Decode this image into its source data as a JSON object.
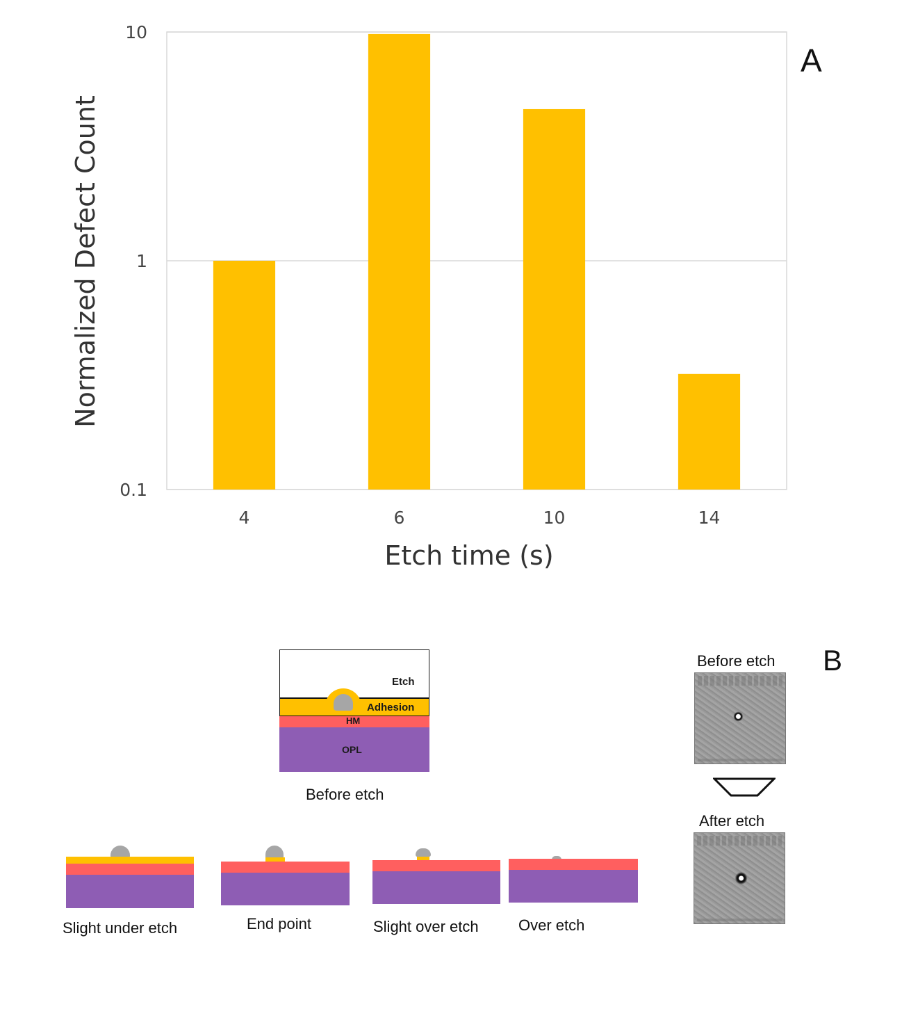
{
  "chart_data": {
    "type": "bar",
    "categories": [
      "4",
      "6",
      "10",
      "14"
    ],
    "values": [
      1.0,
      9.8,
      4.6,
      0.32
    ],
    "xlabel": "Etch time (s)",
    "ylabel": "Normalized Defect Count",
    "yscale": "log",
    "ylim": [
      0.1,
      10
    ],
    "yticks": [
      "0.1",
      "1",
      "10"
    ],
    "grid": true,
    "bar_color": "#FFC000",
    "panel_label": "A"
  },
  "diagram": {
    "panel_label": "B",
    "colors": {
      "adhesion": "#FFC000",
      "hm": "#FF5F5F",
      "opl": "#8E5DB4",
      "particle": "#A6A6A6"
    },
    "before_stack": {
      "etch_label": "Etch",
      "adhesion_label": "Adhesion",
      "hm_label": "HM",
      "opl_label": "OPL",
      "caption": "Before etch"
    },
    "stages": [
      {
        "caption": "Slight under etch"
      },
      {
        "caption": "End point"
      },
      {
        "caption": "Slight over etch"
      },
      {
        "caption": "Over etch"
      }
    ],
    "sem": {
      "before_title": "Before etch",
      "after_title": "After etch",
      "arrow_icon": "down-arrow-icon"
    }
  }
}
